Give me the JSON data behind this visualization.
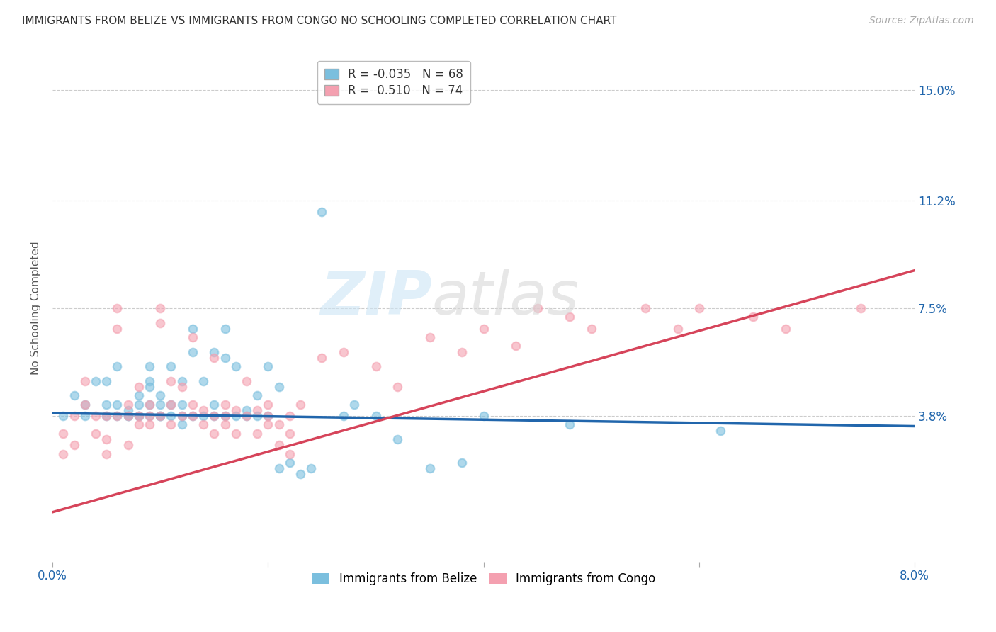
{
  "title": "IMMIGRANTS FROM BELIZE VS IMMIGRANTS FROM CONGO NO SCHOOLING COMPLETED CORRELATION CHART",
  "source": "Source: ZipAtlas.com",
  "ylabel": "No Schooling Completed",
  "ytick_labels": [
    "15.0%",
    "11.2%",
    "7.5%",
    "3.8%"
  ],
  "ytick_values": [
    0.15,
    0.112,
    0.075,
    0.038
  ],
  "xlim": [
    0.0,
    0.08
  ],
  "ylim": [
    -0.012,
    0.162
  ],
  "belize_color": "#7bbfde",
  "congo_color": "#f4a0b0",
  "belize_line_color": "#2166ac",
  "congo_line_color": "#d6445a",
  "legend_R_belize": "-0.035",
  "legend_N_belize": "68",
  "legend_R_congo": "0.510",
  "legend_N_congo": "74",
  "belize_line_x0": 0.0,
  "belize_line_x1": 0.08,
  "belize_line_y0": 0.039,
  "belize_line_y1": 0.0345,
  "congo_line_x0": 0.0,
  "congo_line_x1": 0.08,
  "congo_line_y0": 0.005,
  "congo_line_y1": 0.088,
  "grid_color": "#cccccc",
  "grid_linestyle": "--",
  "background_color": "#ffffff",
  "title_fontsize": 11,
  "source_fontsize": 10,
  "tick_fontsize": 12,
  "ylabel_fontsize": 11,
  "legend_fontsize": 12,
  "marker_size": 70,
  "marker_alpha": 0.6,
  "belize_x": [
    0.001,
    0.002,
    0.003,
    0.003,
    0.004,
    0.005,
    0.005,
    0.005,
    0.006,
    0.006,
    0.006,
    0.007,
    0.007,
    0.007,
    0.008,
    0.008,
    0.008,
    0.008,
    0.009,
    0.009,
    0.009,
    0.009,
    0.009,
    0.01,
    0.01,
    0.01,
    0.01,
    0.011,
    0.011,
    0.011,
    0.012,
    0.012,
    0.012,
    0.012,
    0.013,
    0.013,
    0.013,
    0.014,
    0.014,
    0.015,
    0.015,
    0.015,
    0.016,
    0.016,
    0.016,
    0.017,
    0.017,
    0.018,
    0.018,
    0.019,
    0.019,
    0.02,
    0.02,
    0.021,
    0.021,
    0.022,
    0.023,
    0.024,
    0.025,
    0.027,
    0.028,
    0.03,
    0.032,
    0.035,
    0.038,
    0.04,
    0.048,
    0.062
  ],
  "belize_y": [
    0.038,
    0.045,
    0.042,
    0.038,
    0.05,
    0.042,
    0.038,
    0.05,
    0.042,
    0.038,
    0.055,
    0.04,
    0.038,
    0.038,
    0.045,
    0.038,
    0.042,
    0.038,
    0.048,
    0.055,
    0.042,
    0.038,
    0.05,
    0.038,
    0.042,
    0.038,
    0.045,
    0.042,
    0.038,
    0.055,
    0.05,
    0.038,
    0.042,
    0.035,
    0.06,
    0.068,
    0.038,
    0.05,
    0.038,
    0.06,
    0.038,
    0.042,
    0.068,
    0.058,
    0.038,
    0.055,
    0.038,
    0.04,
    0.038,
    0.045,
    0.038,
    0.055,
    0.038,
    0.048,
    0.02,
    0.022,
    0.018,
    0.02,
    0.108,
    0.038,
    0.042,
    0.038,
    0.03,
    0.02,
    0.022,
    0.038,
    0.035,
    0.033
  ],
  "congo_x": [
    0.001,
    0.001,
    0.002,
    0.002,
    0.003,
    0.003,
    0.004,
    0.004,
    0.005,
    0.005,
    0.005,
    0.006,
    0.006,
    0.006,
    0.007,
    0.007,
    0.007,
    0.008,
    0.008,
    0.008,
    0.009,
    0.009,
    0.009,
    0.01,
    0.01,
    0.01,
    0.011,
    0.011,
    0.011,
    0.012,
    0.012,
    0.013,
    0.013,
    0.013,
    0.014,
    0.014,
    0.015,
    0.015,
    0.015,
    0.016,
    0.016,
    0.016,
    0.017,
    0.017,
    0.018,
    0.018,
    0.019,
    0.019,
    0.02,
    0.02,
    0.02,
    0.021,
    0.021,
    0.022,
    0.022,
    0.022,
    0.023,
    0.025,
    0.027,
    0.03,
    0.032,
    0.035,
    0.038,
    0.04,
    0.043,
    0.045,
    0.048,
    0.05,
    0.055,
    0.058,
    0.06,
    0.065,
    0.068,
    0.075
  ],
  "congo_y": [
    0.032,
    0.025,
    0.038,
    0.028,
    0.042,
    0.05,
    0.038,
    0.032,
    0.03,
    0.038,
    0.025,
    0.068,
    0.075,
    0.038,
    0.038,
    0.042,
    0.028,
    0.048,
    0.035,
    0.038,
    0.042,
    0.038,
    0.035,
    0.038,
    0.07,
    0.075,
    0.05,
    0.042,
    0.035,
    0.048,
    0.038,
    0.065,
    0.042,
    0.038,
    0.04,
    0.035,
    0.058,
    0.038,
    0.032,
    0.042,
    0.038,
    0.035,
    0.04,
    0.032,
    0.05,
    0.038,
    0.04,
    0.032,
    0.042,
    0.038,
    0.035,
    0.035,
    0.028,
    0.032,
    0.038,
    0.025,
    0.042,
    0.058,
    0.06,
    0.055,
    0.048,
    0.065,
    0.06,
    0.068,
    0.062,
    0.075,
    0.072,
    0.068,
    0.075,
    0.068,
    0.075,
    0.072,
    0.068,
    0.075
  ]
}
